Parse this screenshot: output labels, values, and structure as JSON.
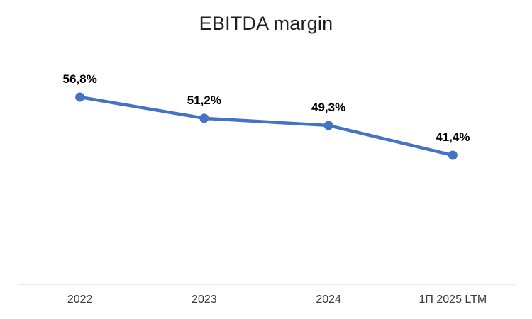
{
  "chart_data": {
    "type": "line",
    "title": "EBITDA margin",
    "categories": [
      "2022",
      "2023",
      "2024",
      "1П 2025 LTM"
    ],
    "values": [
      56.8,
      51.2,
      49.3,
      41.4
    ],
    "point_labels": [
      "56,8%",
      "51,2%",
      "49,3%",
      "41,4%"
    ],
    "series_name": "EBITDA margin",
    "series_color": "#4472C4",
    "axis_line_color": "#D9D9D9",
    "label_color": "#000000",
    "grid": false,
    "legend": false,
    "data_labels_position": "above"
  }
}
